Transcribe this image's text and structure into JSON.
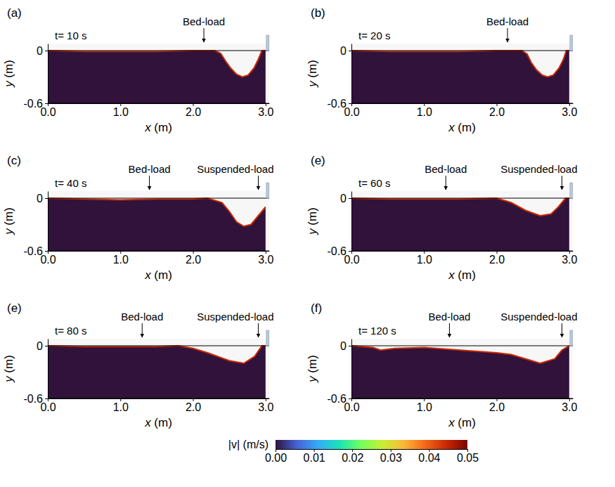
{
  "chart_data": [
    {
      "type": "area",
      "title": "(a)",
      "subtitle": "t= 10 s",
      "x_label": "x (m)",
      "y_label": "y (m)",
      "xlim": [
        0,
        3.05
      ],
      "xticks": [
        {
          "value": 0,
          "label": "0.0"
        },
        {
          "value": 1,
          "label": "1.0"
        },
        {
          "value": 2,
          "label": "2.0"
        },
        {
          "value": 3,
          "label": "3.0"
        }
      ],
      "ylim": [
        -0.6,
        0.08
      ],
      "yticks": [
        -0.6,
        0
      ],
      "grid": true,
      "annotations": [
        {
          "text": "Bed-load",
          "x": 2.15
        }
      ],
      "x": [
        0,
        0.5,
        1.0,
        1.5,
        2.0,
        2.3,
        2.38,
        2.45,
        2.52,
        2.6,
        2.68,
        2.76,
        2.84,
        2.9,
        2.95,
        3.0
      ],
      "series": [
        {
          "color": "#30123b",
          "values": [
            0,
            -0.01,
            -0.01,
            -0.01,
            0,
            0,
            -0.03,
            -0.12,
            -0.2,
            -0.27,
            -0.3,
            -0.28,
            -0.2,
            -0.1,
            0,
            0
          ]
        }
      ]
    },
    {
      "type": "area",
      "title": "(b)",
      "subtitle": "t= 20 s",
      "x_label": "x (m)",
      "y_label": "y (m)",
      "xlim": [
        0,
        3.05
      ],
      "xticks": [
        {
          "value": 0,
          "label": "0.0"
        },
        {
          "value": 1,
          "label": "1.0"
        },
        {
          "value": 2,
          "label": "2.0"
        },
        {
          "value": 3,
          "label": "3.0"
        }
      ],
      "ylim": [
        -0.6,
        0.08
      ],
      "yticks": [
        -0.6,
        0
      ],
      "grid": true,
      "annotations": [
        {
          "text": "Bed-load",
          "x": 2.15
        }
      ],
      "x": [
        0,
        0.5,
        1.0,
        1.5,
        2.0,
        2.35,
        2.42,
        2.48,
        2.55,
        2.63,
        2.7,
        2.78,
        2.86,
        2.92,
        2.96,
        3.0
      ],
      "series": [
        {
          "color": "#30123b",
          "values": [
            0,
            -0.01,
            -0.01,
            -0.01,
            0,
            0,
            -0.04,
            -0.14,
            -0.22,
            -0.28,
            -0.3,
            -0.28,
            -0.2,
            -0.1,
            0,
            0
          ]
        }
      ]
    },
    {
      "type": "area",
      "title": "(c)",
      "subtitle": "t= 40 s",
      "x_label": "x (m)",
      "y_label": "y (m)",
      "xlim": [
        0,
        3.05
      ],
      "xticks": [
        {
          "value": 0,
          "label": "0.0"
        },
        {
          "value": 1,
          "label": "1.0"
        },
        {
          "value": 2,
          "label": "2.0"
        },
        {
          "value": 3,
          "label": "3.0"
        }
      ],
      "ylim": [
        -0.6,
        0.08
      ],
      "yticks": [
        -0.6,
        0
      ],
      "grid": true,
      "annotations": [
        {
          "text": "Bed-load",
          "x": 1.4
        },
        {
          "text": "Suspended-load",
          "x": 2.9
        }
      ],
      "x": [
        0,
        0.5,
        1.0,
        1.5,
        2.0,
        2.2,
        2.4,
        2.5,
        2.6,
        2.7,
        2.8,
        2.9,
        3.0
      ],
      "series": [
        {
          "color": "#30123b",
          "values": [
            0,
            -0.01,
            -0.02,
            -0.01,
            -0.01,
            0,
            -0.05,
            -0.15,
            -0.27,
            -0.32,
            -0.3,
            -0.2,
            -0.1
          ]
        }
      ]
    },
    {
      "type": "area",
      "title": "(e)",
      "subtitle": "t= 60 s",
      "x_label": "x (m)",
      "y_label": "y (m)",
      "xlim": [
        0,
        3.05
      ],
      "xticks": [
        {
          "value": 0,
          "label": "0.0"
        },
        {
          "value": 1,
          "label": "1.0"
        },
        {
          "value": 2,
          "label": "2.0"
        },
        {
          "value": 3,
          "label": "3.0"
        }
      ],
      "ylim": [
        -0.6,
        0.08
      ],
      "yticks": [
        -0.6,
        0
      ],
      "grid": true,
      "annotations": [
        {
          "text": "Bed-load",
          "x": 1.3
        },
        {
          "text": "Suspended-load",
          "x": 2.9
        }
      ],
      "x": [
        0,
        0.5,
        1.0,
        1.5,
        2.0,
        2.2,
        2.4,
        2.6,
        2.75,
        2.85,
        2.95,
        3.0
      ],
      "series": [
        {
          "color": "#30123b",
          "values": [
            0,
            -0.01,
            -0.01,
            -0.01,
            0,
            -0.05,
            -0.14,
            -0.2,
            -0.18,
            -0.1,
            0,
            0
          ]
        }
      ]
    },
    {
      "type": "area",
      "title": "(e)",
      "subtitle": "t= 80 s",
      "x_label": "x (m)",
      "y_label": "y (m)",
      "xlim": [
        0,
        3.05
      ],
      "xticks": [
        {
          "value": 0,
          "label": "0.0"
        },
        {
          "value": 1,
          "label": "1.0"
        },
        {
          "value": 2,
          "label": "2.0"
        },
        {
          "value": 3,
          "label": "3.0"
        }
      ],
      "ylim": [
        -0.6,
        0.08
      ],
      "yticks": [
        -0.6,
        0
      ],
      "grid": true,
      "annotations": [
        {
          "text": "Bed-load",
          "x": 1.3
        },
        {
          "text": "Suspended-load",
          "x": 2.9
        }
      ],
      "x": [
        0,
        0.5,
        1.0,
        1.5,
        1.8,
        2.0,
        2.2,
        2.5,
        2.7,
        2.85,
        2.95,
        3.0
      ],
      "series": [
        {
          "color": "#30123b",
          "values": [
            0,
            -0.01,
            -0.01,
            -0.01,
            0,
            -0.03,
            -0.08,
            -0.17,
            -0.2,
            -0.12,
            0,
            0
          ]
        }
      ]
    },
    {
      "type": "area",
      "title": "(f)",
      "subtitle": "t= 120 s",
      "x_label": "x (m)",
      "y_label": "y (m)",
      "xlim": [
        0,
        3.05
      ],
      "xticks": [
        {
          "value": 0,
          "label": "0.0"
        },
        {
          "value": 1,
          "label": "1.0"
        },
        {
          "value": 2,
          "label": "2.0"
        },
        {
          "value": 3,
          "label": "3.0"
        }
      ],
      "ylim": [
        -0.6,
        0.08
      ],
      "yticks": [
        -0.6,
        0
      ],
      "grid": true,
      "annotations": [
        {
          "text": "Bed-load",
          "x": 1.35
        },
        {
          "text": "Suspended-load",
          "x": 2.9
        }
      ],
      "x": [
        0,
        0.3,
        0.4,
        0.6,
        1.0,
        1.5,
        2.0,
        2.2,
        2.4,
        2.6,
        2.8,
        2.9,
        3.0
      ],
      "series": [
        {
          "color": "#30123b",
          "values": [
            0,
            -0.02,
            -0.05,
            -0.03,
            -0.02,
            -0.05,
            -0.08,
            -0.1,
            -0.15,
            -0.2,
            -0.15,
            -0.05,
            0
          ]
        }
      ]
    },
    {
      "type": "colorbar",
      "title": "|v| (m/s)",
      "xlim": [
        0,
        0.05
      ],
      "xticks": [
        {
          "value": 0,
          "label": "0.00"
        },
        {
          "value": 0.01,
          "label": "0.01"
        },
        {
          "value": 0.02,
          "label": "0.02"
        },
        {
          "value": 0.03,
          "label": "0.03"
        },
        {
          "value": 0.04,
          "label": "0.04"
        },
        {
          "value": 0.05,
          "label": "0.05"
        }
      ]
    }
  ]
}
